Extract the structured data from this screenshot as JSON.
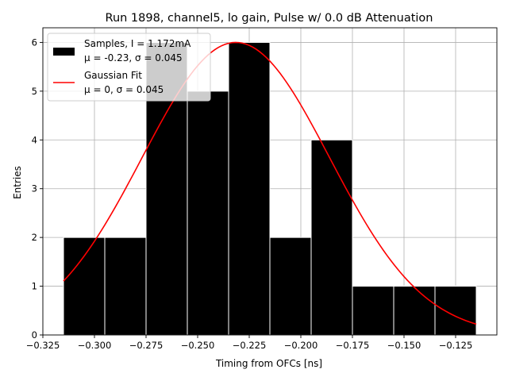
{
  "chart_data": {
    "type": "bar",
    "title": "Run 1898, channel5, lo gain, Pulse w/ 0.0 dB Attenuation",
    "xlabel": "Timing from OFCs [ns]",
    "ylabel": "Entries",
    "xlim": [
      -0.325,
      -0.105
    ],
    "ylim": [
      0,
      6.3
    ],
    "grid": true,
    "legend_position": "top-left",
    "xticks": [
      -0.325,
      -0.3,
      -0.275,
      -0.25,
      -0.225,
      -0.2,
      -0.175,
      -0.15,
      -0.125
    ],
    "xtick_labels": [
      "−0.325",
      "−0.300",
      "−0.275",
      "−0.250",
      "−0.225",
      "−0.200",
      "−0.175",
      "−0.150",
      "−0.125"
    ],
    "yticks": [
      0,
      1,
      2,
      3,
      4,
      5,
      6
    ],
    "ytick_labels": [
      "0",
      "1",
      "2",
      "3",
      "4",
      "5",
      "6"
    ],
    "histogram": {
      "name": "Samples, I = 1.172mA",
      "stats_label": "μ = -0.23, σ = 0.045",
      "color": "#000000",
      "edge_color": "#ffffff",
      "bins": [
        {
          "x0": -0.315,
          "x1": -0.295,
          "count": 2
        },
        {
          "x0": -0.295,
          "x1": -0.275,
          "count": 2
        },
        {
          "x0": -0.275,
          "x1": -0.255,
          "count": 6
        },
        {
          "x0": -0.255,
          "x1": -0.235,
          "count": 5
        },
        {
          "x0": -0.235,
          "x1": -0.215,
          "count": 6
        },
        {
          "x0": -0.215,
          "x1": -0.195,
          "count": 2
        },
        {
          "x0": -0.195,
          "x1": -0.175,
          "count": 4
        },
        {
          "x0": -0.175,
          "x1": -0.155,
          "count": 1
        },
        {
          "x0": -0.155,
          "x1": -0.135,
          "count": 1
        },
        {
          "x0": -0.135,
          "x1": -0.115,
          "count": 1
        }
      ]
    },
    "fit": {
      "name": "Gaussian Fit",
      "stats_label": "μ = 0, σ = 0.045",
      "color": "#ff0000",
      "peak": 6.0,
      "center": -0.2315,
      "sigma": 0.0454,
      "x_start": -0.315,
      "x_end": -0.115
    }
  }
}
